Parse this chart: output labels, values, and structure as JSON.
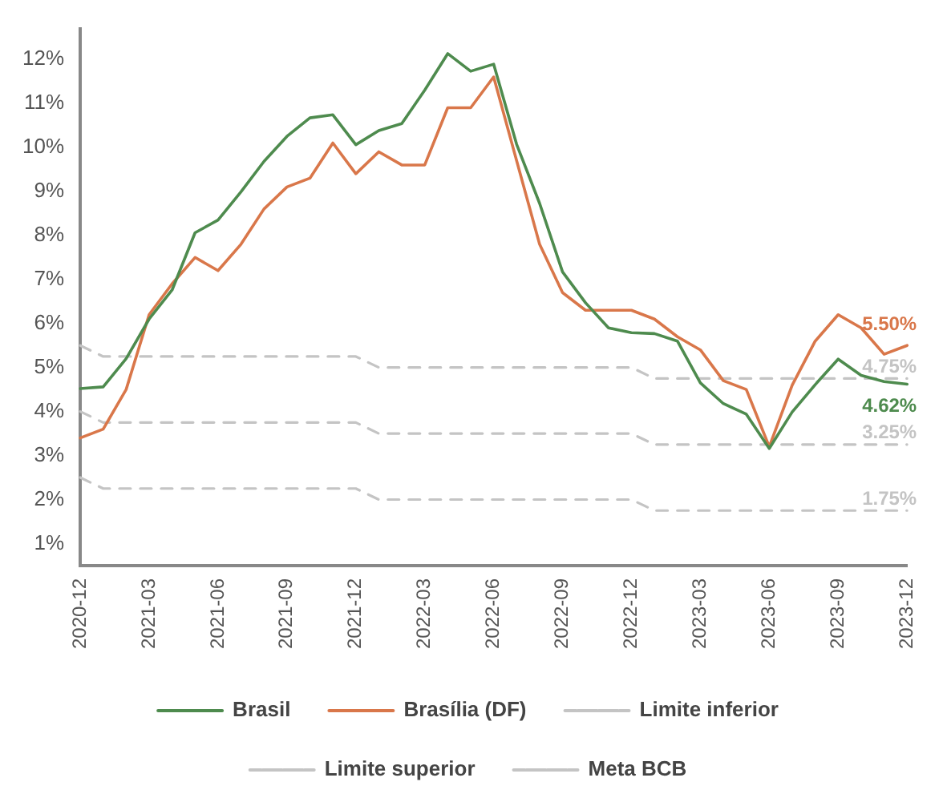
{
  "chart_data": {
    "type": "line",
    "categories": [
      "2020-12",
      null,
      null,
      "2021-03",
      null,
      null,
      "2021-06",
      null,
      null,
      "2021-09",
      null,
      null,
      "2021-12",
      null,
      null,
      "2022-03",
      null,
      null,
      "2022-06",
      null,
      null,
      "2022-09",
      null,
      null,
      "2022-12",
      null,
      null,
      "2023-03",
      null,
      null,
      "2023-06",
      null,
      null,
      "2023-09",
      null,
      null,
      "2023-12"
    ],
    "series": [
      {
        "name": "Brasil",
        "color": "#4e8b4e",
        "line_style": "solid",
        "values": [
          4.52,
          4.56,
          5.2,
          6.1,
          6.76,
          8.06,
          8.35,
          8.99,
          9.68,
          10.25,
          10.67,
          10.74,
          10.06,
          10.38,
          10.54,
          11.3,
          12.13,
          11.73,
          11.89,
          10.07,
          8.73,
          7.17,
          6.47,
          5.9,
          5.79,
          5.77,
          5.6,
          4.65,
          4.18,
          3.94,
          3.16,
          3.99,
          4.61,
          5.19,
          4.82,
          4.68,
          4.62
        ],
        "value_labels": [
          null,
          null,
          null,
          null,
          null,
          null,
          null,
          null,
          null,
          null,
          null,
          null,
          null,
          null,
          null,
          null,
          null,
          null,
          null,
          null,
          null,
          null,
          null,
          null,
          null,
          null,
          null,
          null,
          null,
          null,
          null,
          null,
          null,
          null,
          null,
          null,
          "4.62%"
        ]
      },
      {
        "name": "Brasília (DF)",
        "color": "#d9774a",
        "line_style": "solid",
        "values": [
          3.4,
          3.6,
          4.5,
          6.2,
          6.9,
          7.5,
          7.2,
          7.8,
          8.6,
          9.1,
          9.3,
          10.1,
          9.4,
          9.9,
          9.6,
          9.6,
          10.9,
          10.9,
          11.6,
          9.7,
          7.8,
          6.7,
          6.3,
          6.3,
          6.3,
          6.1,
          5.7,
          5.4,
          4.7,
          4.5,
          3.2,
          4.6,
          5.6,
          6.2,
          5.9,
          5.3,
          5.5
        ],
        "value_labels": [
          null,
          null,
          null,
          null,
          null,
          null,
          null,
          null,
          null,
          null,
          null,
          null,
          null,
          null,
          null,
          null,
          null,
          null,
          null,
          null,
          null,
          null,
          null,
          null,
          null,
          null,
          null,
          null,
          null,
          null,
          null,
          null,
          null,
          null,
          null,
          null,
          "5.50%"
        ]
      },
      {
        "name": "Limite inferior",
        "color": "#c4c4c4",
        "line_style": "dashed",
        "values": [
          2.5,
          2.25,
          2.25,
          2.25,
          2.25,
          2.25,
          2.25,
          2.25,
          2.25,
          2.25,
          2.25,
          2.25,
          2.25,
          2,
          2,
          2,
          2,
          2,
          2,
          2,
          2,
          2,
          2,
          2,
          2,
          1.75,
          1.75,
          1.75,
          1.75,
          1.75,
          1.75,
          1.75,
          1.75,
          1.75,
          1.75,
          1.75,
          1.75
        ],
        "value_labels": [
          null,
          null,
          null,
          null,
          null,
          null,
          null,
          null,
          null,
          null,
          null,
          null,
          null,
          null,
          null,
          null,
          null,
          null,
          null,
          null,
          null,
          null,
          null,
          null,
          null,
          null,
          null,
          null,
          null,
          null,
          null,
          null,
          null,
          null,
          null,
          null,
          "1.75%"
        ]
      },
      {
        "name": "Limite superior",
        "color": "#c4c4c4",
        "line_style": "dashed",
        "values": [
          5.5,
          5.25,
          5.25,
          5.25,
          5.25,
          5.25,
          5.25,
          5.25,
          5.25,
          5.25,
          5.25,
          5.25,
          5.25,
          5,
          5,
          5,
          5,
          5,
          5,
          5,
          5,
          5,
          5,
          5,
          5,
          4.75,
          4.75,
          4.75,
          4.75,
          4.75,
          4.75,
          4.75,
          4.75,
          4.75,
          4.75,
          4.75,
          4.75
        ],
        "value_labels": [
          null,
          null,
          null,
          null,
          null,
          null,
          null,
          null,
          null,
          null,
          null,
          null,
          null,
          null,
          null,
          null,
          null,
          null,
          null,
          null,
          null,
          null,
          null,
          null,
          null,
          null,
          null,
          null,
          null,
          null,
          null,
          null,
          null,
          null,
          null,
          null,
          "4.75%"
        ]
      },
      {
        "name": "Meta BCB",
        "color": "#c4c4c4",
        "line_style": "dashed",
        "values": [
          4,
          3.75,
          3.75,
          3.75,
          3.75,
          3.75,
          3.75,
          3.75,
          3.75,
          3.75,
          3.75,
          3.75,
          3.75,
          3.5,
          3.5,
          3.5,
          3.5,
          3.5,
          3.5,
          3.5,
          3.5,
          3.5,
          3.5,
          3.5,
          3.5,
          3.25,
          3.25,
          3.25,
          3.25,
          3.25,
          3.25,
          3.25,
          3.25,
          3.25,
          3.25,
          3.25,
          3.25
        ],
        "value_labels": [
          null,
          null,
          null,
          null,
          null,
          null,
          null,
          null,
          null,
          null,
          null,
          null,
          null,
          null,
          null,
          null,
          null,
          null,
          null,
          null,
          null,
          null,
          null,
          null,
          null,
          null,
          null,
          null,
          null,
          null,
          null,
          null,
          null,
          null,
          null,
          null,
          "3.25%"
        ]
      }
    ],
    "ylim": [
      0.5,
      12.7
    ],
    "yticks": [
      {
        "value": 1,
        "label": "1%"
      },
      {
        "value": 2,
        "label": "2%"
      },
      {
        "value": 3,
        "label": "3%"
      },
      {
        "value": 4,
        "label": "4%"
      },
      {
        "value": 5,
        "label": "5%"
      },
      {
        "value": 6,
        "label": "6%"
      },
      {
        "value": 7,
        "label": "7%"
      },
      {
        "value": 8,
        "label": "8%"
      },
      {
        "value": 9,
        "label": "9%"
      },
      {
        "value": 10,
        "label": "10%"
      },
      {
        "value": 11,
        "label": "11%"
      },
      {
        "value": 12,
        "label": "12%"
      }
    ],
    "grid": false,
    "legend": "bottom"
  }
}
